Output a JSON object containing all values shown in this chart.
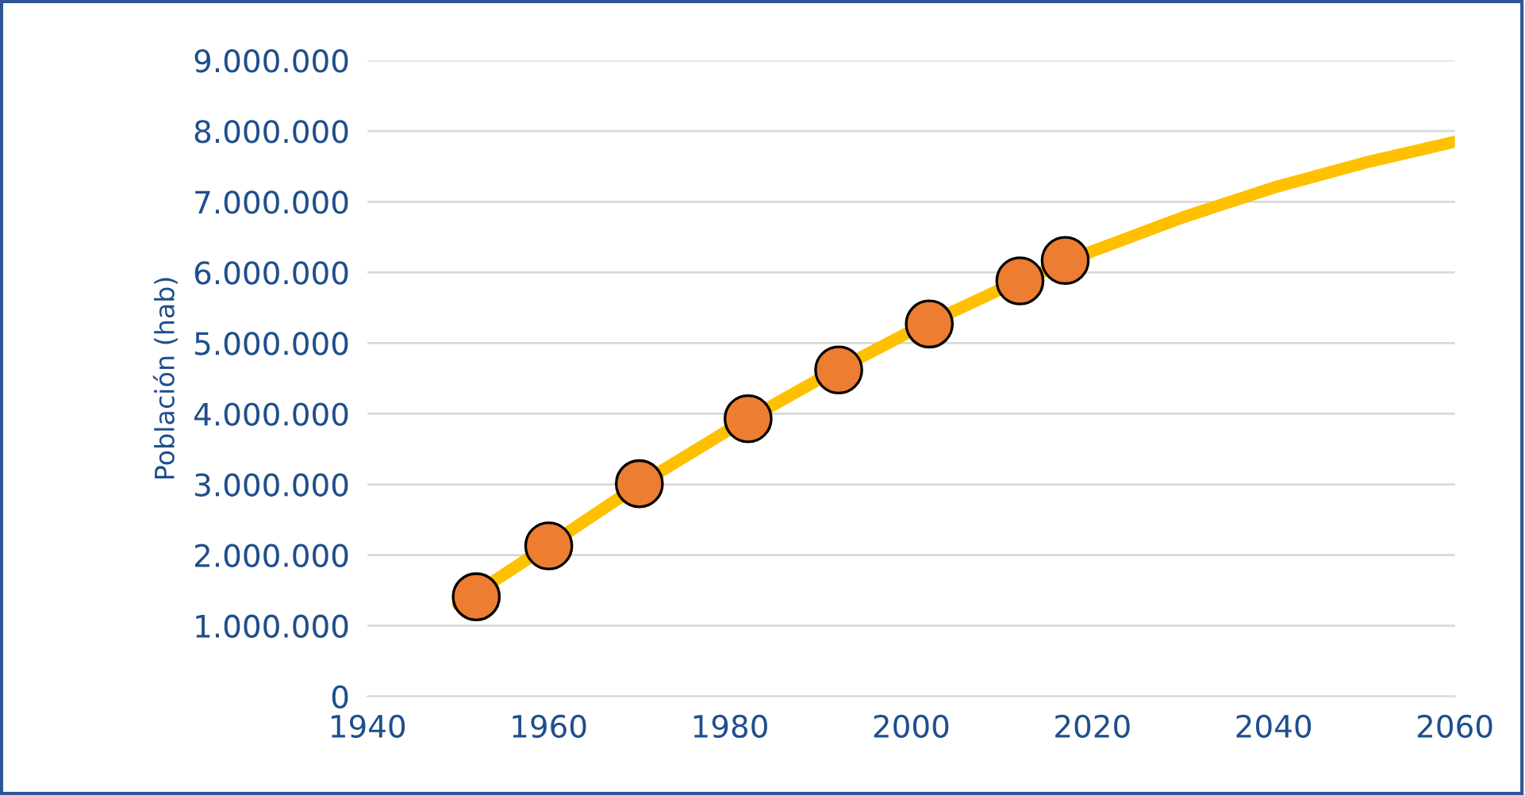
{
  "chart_data": {
    "type": "line",
    "ylabel": "Población (hab)",
    "series": [
      {
        "color": "#ffc000",
        "marker": "none",
        "x": [
          1950,
          1960,
          1970,
          1980,
          1990,
          2000,
          2010,
          2020,
          2030,
          2040,
          2050,
          2060
        ],
        "values": [
          1300000,
          2140000,
          3000000,
          3780000,
          4500000,
          5170000,
          5770000,
          6300000,
          6780000,
          7200000,
          7550000,
          7850000
        ]
      },
      {
        "type": "scatter",
        "color": "#ed7d31",
        "marker": "circle",
        "x": [
          1952,
          1960,
          1970,
          1982,
          1992,
          2002,
          2012,
          2017
        ],
        "values": [
          1410000,
          2130000,
          3010000,
          3930000,
          4620000,
          5270000,
          5880000,
          6170000
        ]
      }
    ],
    "xlim": [
      1940,
      2060
    ],
    "xticks": [
      1940,
      1960,
      1980,
      2000,
      2020,
      2040,
      2060
    ],
    "ylim": [
      0,
      9000000
    ],
    "yticks": [
      0,
      {
        "value": 1000000,
        "label": "1.000.000"
      },
      {
        "value": 2000000,
        "label": "2.000.000"
      },
      {
        "value": 3000000,
        "label": "3.000.000"
      },
      {
        "value": 4000000,
        "label": "4.000.000"
      },
      {
        "value": 5000000,
        "label": "5.000.000"
      },
      {
        "value": 6000000,
        "label": "6.000.000"
      },
      {
        "value": 7000000,
        "label": "7.000.000"
      },
      {
        "value": 8000000,
        "label": "8.000.000"
      },
      {
        "value": 9000000,
        "label": "9.000.000"
      }
    ],
    "grid": "y",
    "legend": false
  }
}
